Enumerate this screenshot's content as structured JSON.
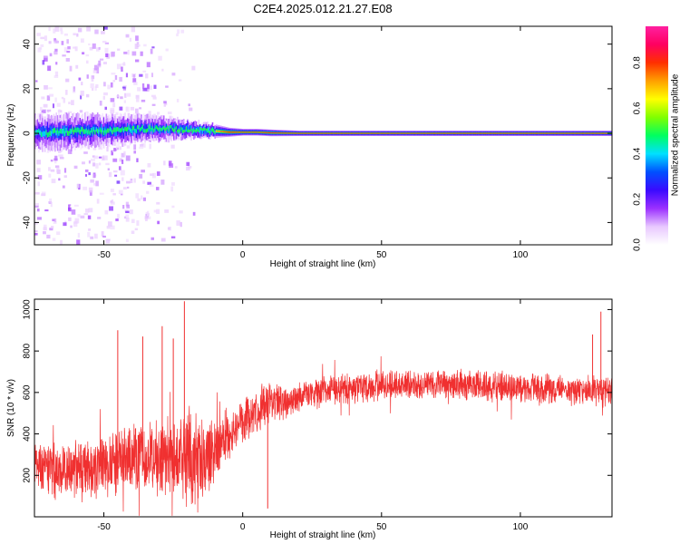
{
  "title": "C2E4.2025.012.21.27.E08",
  "colorbar": {
    "label": "Normalized spectral amplitude",
    "ticks": [
      "0.0",
      "0.2",
      "0.4",
      "0.6",
      "0.8"
    ],
    "tick_values": [
      0.0,
      0.2,
      0.4,
      0.6,
      0.8
    ],
    "range": [
      0,
      0.96
    ],
    "colormap": [
      "#ffffff",
      "#e8c8ff",
      "#9b30ff",
      "#3a0aff",
      "#0050ff",
      "#00e0ff",
      "#00ff60",
      "#80ff00",
      "#ffff00",
      "#ffa000",
      "#ff3000",
      "#ff0060",
      "#ff20a0"
    ]
  },
  "chart_data": [
    {
      "type": "heatmap",
      "name": "spectrogram",
      "xlabel": "Height of straight line (km)",
      "ylabel": "Frequency (Hz)",
      "xlim": [
        -75,
        133
      ],
      "ylim": [
        -50,
        48
      ],
      "xticks": [
        -50,
        0,
        50,
        100
      ],
      "xtick_labels": [
        "-50",
        "0",
        "50",
        "100"
      ],
      "yticks": [
        -40,
        -20,
        0,
        20,
        40
      ],
      "ytick_labels": [
        "-40",
        "-20",
        "0",
        "20",
        "40"
      ],
      "grid": false,
      "ridge": {
        "x": [
          -75,
          -65,
          -55,
          -45,
          -35,
          -25,
          -18,
          -10,
          -5,
          0,
          5,
          10,
          20,
          40,
          60,
          80,
          100,
          120,
          133
        ],
        "freq_center": [
          0,
          0.5,
          1,
          1.5,
          2,
          2,
          1.5,
          1,
          0.5,
          0.5,
          0.5,
          0.2,
          0,
          0,
          0,
          0,
          0,
          0,
          0
        ],
        "half_width": [
          8,
          8,
          7.5,
          7,
          6,
          5,
          4,
          3,
          2,
          1.5,
          1.5,
          1.5,
          1.2,
          1.2,
          1.2,
          1.2,
          1.2,
          1.2,
          1.2
        ],
        "peak_amplitude": [
          0.5,
          0.55,
          0.55,
          0.55,
          0.55,
          0.6,
          0.65,
          0.8,
          0.95,
          0.95,
          0.95,
          0.95,
          0.95,
          0.95,
          0.95,
          0.95,
          0.95,
          0.95,
          0.95
        ]
      },
      "noise_extent_x": [
        -75,
        -15
      ]
    },
    {
      "type": "line",
      "name": "snr",
      "xlabel": "Height of straight line (km)",
      "ylabel": "SNR (10 * v/v)",
      "xlim": [
        -75,
        133
      ],
      "ylim": [
        0,
        1050
      ],
      "xticks": [
        -50,
        0,
        50,
        100
      ],
      "xtick_labels": [
        "-50",
        "0",
        "50",
        "100"
      ],
      "yticks": [
        200,
        400,
        600,
        800,
        1000
      ],
      "ytick_labels": [
        "200",
        "400",
        "600",
        "800",
        "1000"
      ],
      "grid": false,
      "color": "#f03030",
      "envelope": {
        "x": [
          -75,
          -65,
          -55,
          -45,
          -35,
          -25,
          -20,
          -15,
          -10,
          -5,
          0,
          5,
          10,
          15,
          20,
          30,
          40,
          60,
          80,
          100,
          120,
          133
        ],
        "mean": [
          240,
          220,
          230,
          260,
          300,
          260,
          300,
          240,
          330,
          400,
          450,
          520,
          540,
          560,
          580,
          610,
          620,
          640,
          640,
          620,
          610,
          610
        ],
        "spread": [
          120,
          120,
          140,
          150,
          180,
          200,
          220,
          200,
          150,
          120,
          110,
          100,
          100,
          80,
          70,
          70,
          70,
          70,
          70,
          70,
          70,
          70
        ]
      },
      "spikes": [
        {
          "x": -21,
          "y": 1040
        },
        {
          "x": -29,
          "y": 920
        },
        {
          "x": -45,
          "y": 900
        },
        {
          "x": -36,
          "y": 870
        },
        {
          "x": -25,
          "y": 860
        },
        {
          "x": 9,
          "y": 40
        },
        {
          "x": 129,
          "y": 990
        },
        {
          "x": 126,
          "y": 880
        }
      ]
    }
  ]
}
